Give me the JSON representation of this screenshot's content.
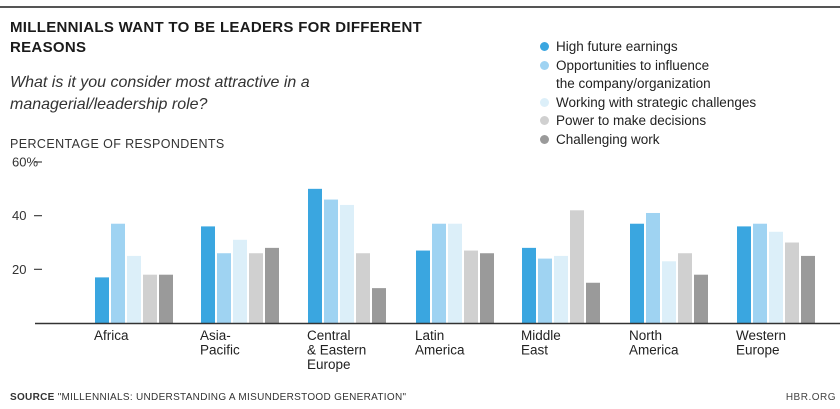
{
  "header": {
    "title": "MILLENNIALS WANT TO BE LEADERS FOR DIFFERENT REASONS",
    "subtitle": "What is it you consider most attractive in a managerial/leadership role?"
  },
  "footer": {
    "source_label": "SOURCE",
    "source_text": "\"MILLENNIALS: UNDERSTANDING A MISUNDERSTOOD GENERATION\"",
    "credit": "HBR.ORG"
  },
  "chart_data": {
    "type": "bar",
    "title": "MILLENNIALS WANT TO BE LEADERS FOR DIFFERENT REASONS",
    "subtitle": "What is it you consider most attractive in a managerial/leadership role?",
    "ylabel": "PERCENTAGE OF RESPONDENTS",
    "xlabel": "",
    "ylim": [
      0,
      60
    ],
    "yticks": [
      "20",
      "40",
      "60%"
    ],
    "grid": false,
    "legend_position": "top-right",
    "categories": [
      "Africa",
      "Asia-\nPacific",
      "Central\n& Eastern\nEurope",
      "Latin\nAmerica",
      "Middle\nEast",
      "North\nAmerica",
      "Western\nEurope"
    ],
    "series": [
      {
        "name": "High future earnings",
        "color": "#3aa6e0",
        "values": [
          17,
          36,
          50,
          27,
          28,
          37,
          36
        ]
      },
      {
        "name": "Opportunities to influence\nthe company/organization",
        "color": "#9fd3f2",
        "values": [
          37,
          26,
          46,
          37,
          24,
          41,
          37
        ]
      },
      {
        "name": "Working with strategic challenges",
        "color": "#dceff9",
        "values": [
          25,
          31,
          44,
          37,
          25,
          23,
          34
        ]
      },
      {
        "name": "Power to make decisions",
        "color": "#d0d0d0",
        "values": [
          18,
          26,
          26,
          27,
          42,
          26,
          30
        ]
      },
      {
        "name": "Challenging work",
        "color": "#9a9a9a",
        "values": [
          18,
          28,
          13,
          26,
          15,
          18,
          25
        ]
      }
    ]
  }
}
